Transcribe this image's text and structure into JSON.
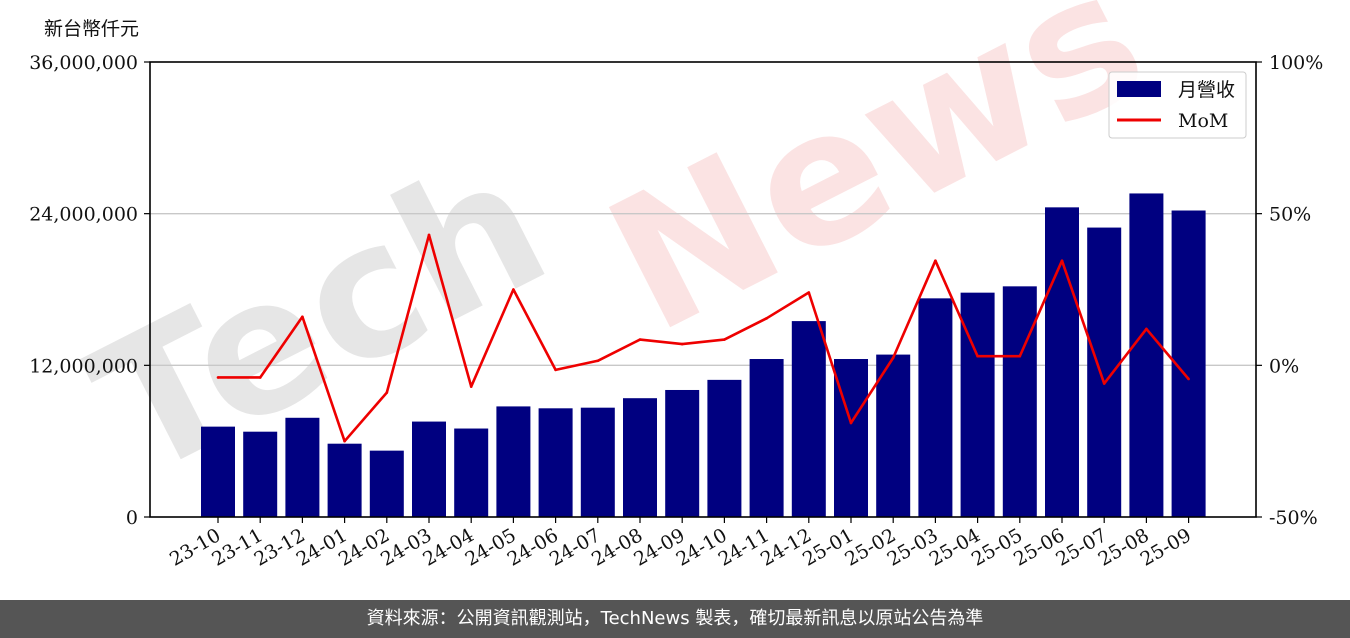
{
  "unit_label": "新台幣仟元",
  "footer_text": "資料來源：公開資訊觀測站，TechNews 製表，確切最新訊息以原站公告為準",
  "watermark": {
    "part1": "Tech",
    "part2": "News"
  },
  "colors": {
    "bar": "#000080",
    "line": "#ee0000",
    "grid": "#c8c8c8",
    "wm1": "#e6e6e6",
    "wm2": "#fbe3e3"
  },
  "chart_data": {
    "type": "bar",
    "categories": [
      "23-10",
      "23-11",
      "23-12",
      "24-01",
      "24-02",
      "24-03",
      "24-04",
      "24-05",
      "24-06",
      "24-07",
      "24-08",
      "24-09",
      "24-10",
      "24-11",
      "24-12",
      "25-01",
      "25-02",
      "25-03",
      "25-04",
      "25-05",
      "25-06",
      "25-07",
      "25-08",
      "25-09"
    ],
    "series": [
      {
        "name": "月營收",
        "type": "bar",
        "axis": "left",
        "values": [
          7150000,
          6750000,
          7850000,
          5800000,
          5250000,
          7550000,
          7000000,
          8750000,
          8600000,
          8650000,
          9400000,
          10050000,
          10850000,
          12500000,
          15500000,
          12500000,
          12850000,
          17300000,
          17750000,
          18250000,
          24500000,
          22900000,
          25600000,
          24250000
        ]
      },
      {
        "name": "MoM",
        "type": "line",
        "axis": "right",
        "values": [
          -4,
          -4,
          16,
          -25,
          -9,
          43,
          -7,
          25,
          -1.5,
          1.5,
          8.5,
          7,
          8.5,
          15.5,
          24,
          -19,
          2.5,
          34.5,
          3,
          3,
          34.5,
          -6,
          12,
          -4.5
        ]
      }
    ],
    "yticks_left": [
      "0",
      "12,000,000",
      "24,000,000",
      "36,000,000"
    ],
    "yticks_right": [
      "-50%",
      "0%",
      "50%",
      "100%"
    ],
    "ylim_left": [
      0,
      36000000
    ],
    "ylim_right": [
      -50,
      100
    ],
    "grid": "horizontal",
    "legend": "top-right"
  }
}
